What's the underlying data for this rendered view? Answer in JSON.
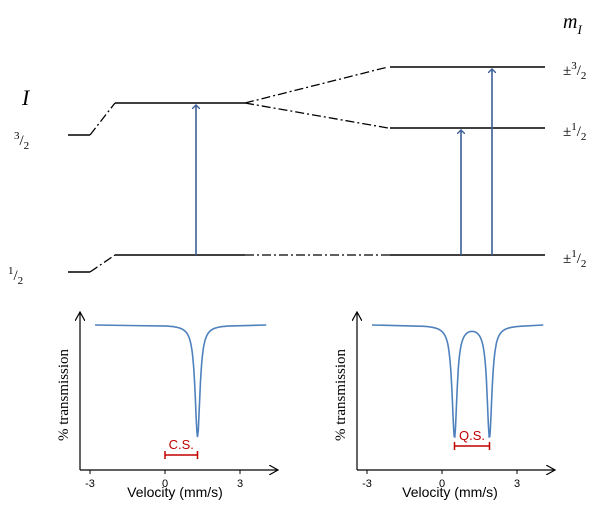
{
  "energy_levels": {
    "spin_label": "I",
    "ml_label": "m",
    "ml_subscript": "I",
    "excited": {
      "numerator": "3",
      "separator": "/",
      "denominator": "2"
    },
    "ground": {
      "numerator": "1",
      "separator": "/",
      "denominator": "2"
    },
    "sublevels": [
      {
        "prefix": "±",
        "numerator": "3",
        "separator": "/",
        "denominator": "2"
      },
      {
        "prefix": "±",
        "numerator": "1",
        "separator": "/",
        "denominator": "2"
      },
      {
        "prefix": "±",
        "numerator": "1",
        "separator": "/",
        "denominator": "2"
      }
    ]
  },
  "spectra": [
    {
      "ylabel": "% transmission",
      "xlabel": "Velocity (mm/s)",
      "xlim": [
        -3.4,
        4.6
      ],
      "xticks": [
        -3,
        0,
        3
      ],
      "dips": [
        1.3
      ],
      "annotation": "C.S."
    },
    {
      "ylabel": "% transmission",
      "xlabel": "Velocity (mm/s)",
      "xlim": [
        -3.4,
        4.6
      ],
      "xticks": [
        -3,
        0,
        3
      ],
      "dips": [
        0.5,
        1.9
      ],
      "annotation": "Q.S."
    }
  ]
}
